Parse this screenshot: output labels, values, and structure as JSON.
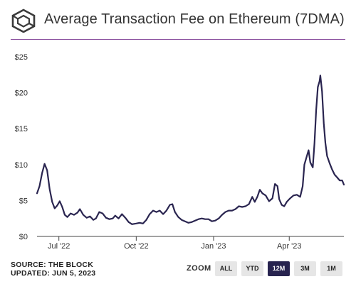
{
  "header": {
    "title": "Average Transaction Fee on Ethereum (7DMA)",
    "logo_icon": "cube-icon",
    "rule_color": "#8a4f9e"
  },
  "footer": {
    "source": "SOURCE: THE BLOCK",
    "updated": "UPDATED: JUN 5, 2023"
  },
  "zoom": {
    "label": "ZOOM",
    "buttons": [
      "ALL",
      "YTD",
      "12M",
      "3M",
      "1M"
    ],
    "active": "12M"
  },
  "colors": {
    "line": "#2a2550",
    "active_button": "#27234f",
    "button": "#e6e6e6",
    "axis": "#333333"
  },
  "chart_data": {
    "type": "line",
    "title": "Average Transaction Fee on Ethereum (7DMA)",
    "xlabel": "",
    "ylabel": "",
    "ylim": [
      0,
      25
    ],
    "yticks": [
      "$0",
      "$5",
      "$10",
      "$15",
      "$20",
      "$25"
    ],
    "xticks": [
      {
        "label": "Jul '22",
        "date": "2022-07-01"
      },
      {
        "label": "Oct '22",
        "date": "2022-10-01"
      },
      {
        "label": "Jan '23",
        "date": "2023-01-01"
      },
      {
        "label": "Apr '23",
        "date": "2023-04-01"
      }
    ],
    "xrange": [
      "2022-06-05",
      "2023-06-05"
    ],
    "grid": false,
    "legend": "none",
    "series": [
      {
        "name": "",
        "points": [
          [
            "2022-06-05",
            6.0
          ],
          [
            "2022-06-08",
            7.0
          ],
          [
            "2022-06-11",
            8.8
          ],
          [
            "2022-06-14",
            10.1
          ],
          [
            "2022-06-17",
            9.2
          ],
          [
            "2022-06-20",
            6.6
          ],
          [
            "2022-06-23",
            4.8
          ],
          [
            "2022-06-26",
            3.9
          ],
          [
            "2022-06-29",
            4.3
          ],
          [
            "2022-07-02",
            4.9
          ],
          [
            "2022-07-05",
            4.1
          ],
          [
            "2022-07-08",
            3.0
          ],
          [
            "2022-07-11",
            2.7
          ],
          [
            "2022-07-15",
            3.2
          ],
          [
            "2022-07-19",
            3.0
          ],
          [
            "2022-07-23",
            3.3
          ],
          [
            "2022-07-26",
            3.8
          ],
          [
            "2022-07-30",
            3.0
          ],
          [
            "2022-08-03",
            2.6
          ],
          [
            "2022-08-07",
            2.8
          ],
          [
            "2022-08-11",
            2.3
          ],
          [
            "2022-08-14",
            2.5
          ],
          [
            "2022-08-18",
            3.4
          ],
          [
            "2022-08-22",
            3.2
          ],
          [
            "2022-08-26",
            2.6
          ],
          [
            "2022-08-30",
            2.4
          ],
          [
            "2022-09-03",
            2.5
          ],
          [
            "2022-09-06",
            2.9
          ],
          [
            "2022-09-10",
            2.5
          ],
          [
            "2022-09-14",
            3.1
          ],
          [
            "2022-09-18",
            2.6
          ],
          [
            "2022-09-22",
            2.0
          ],
          [
            "2022-09-26",
            1.7
          ],
          [
            "2022-10-01",
            1.8
          ],
          [
            "2022-10-05",
            1.9
          ],
          [
            "2022-10-09",
            1.8
          ],
          [
            "2022-10-13",
            2.3
          ],
          [
            "2022-10-17",
            3.1
          ],
          [
            "2022-10-21",
            3.6
          ],
          [
            "2022-10-25",
            3.4
          ],
          [
            "2022-10-29",
            3.6
          ],
          [
            "2022-11-02",
            3.1
          ],
          [
            "2022-11-06",
            3.6
          ],
          [
            "2022-11-10",
            4.4
          ],
          [
            "2022-11-13",
            4.5
          ],
          [
            "2022-11-16",
            3.4
          ],
          [
            "2022-11-20",
            2.7
          ],
          [
            "2022-11-24",
            2.3
          ],
          [
            "2022-11-28",
            2.1
          ],
          [
            "2022-12-02",
            1.9
          ],
          [
            "2022-12-06",
            2.0
          ],
          [
            "2022-12-10",
            2.2
          ],
          [
            "2022-12-14",
            2.4
          ],
          [
            "2022-12-18",
            2.5
          ],
          [
            "2022-12-22",
            2.4
          ],
          [
            "2022-12-26",
            2.4
          ],
          [
            "2022-12-30",
            2.1
          ],
          [
            "2023-01-03",
            2.2
          ],
          [
            "2023-01-07",
            2.5
          ],
          [
            "2023-01-11",
            3.0
          ],
          [
            "2023-01-15",
            3.4
          ],
          [
            "2023-01-19",
            3.6
          ],
          [
            "2023-01-23",
            3.6
          ],
          [
            "2023-01-27",
            3.8
          ],
          [
            "2023-01-31",
            4.2
          ],
          [
            "2023-02-04",
            4.1
          ],
          [
            "2023-02-08",
            4.2
          ],
          [
            "2023-02-12",
            4.5
          ],
          [
            "2023-02-16",
            5.5
          ],
          [
            "2023-02-19",
            4.8
          ],
          [
            "2023-02-22",
            5.5
          ],
          [
            "2023-02-25",
            6.5
          ],
          [
            "2023-02-28",
            6.0
          ],
          [
            "2023-03-04",
            5.7
          ],
          [
            "2023-03-08",
            4.9
          ],
          [
            "2023-03-12",
            5.3
          ],
          [
            "2023-03-15",
            7.3
          ],
          [
            "2023-03-18",
            7.0
          ],
          [
            "2023-03-20",
            5.2
          ],
          [
            "2023-03-23",
            4.4
          ],
          [
            "2023-03-26",
            4.2
          ],
          [
            "2023-03-29",
            4.8
          ],
          [
            "2023-04-02",
            5.3
          ],
          [
            "2023-04-06",
            5.7
          ],
          [
            "2023-04-10",
            5.8
          ],
          [
            "2023-04-14",
            5.5
          ],
          [
            "2023-04-17",
            7.0
          ],
          [
            "2023-04-19",
            10.0
          ],
          [
            "2023-04-22",
            11.2
          ],
          [
            "2023-04-24",
            12.0
          ],
          [
            "2023-04-26",
            10.3
          ],
          [
            "2023-04-29",
            9.6
          ],
          [
            "2023-05-01",
            13.0
          ],
          [
            "2023-05-03",
            17.5
          ],
          [
            "2023-05-05",
            20.8
          ],
          [
            "2023-05-07",
            21.6
          ],
          [
            "2023-05-08",
            22.4
          ],
          [
            "2023-05-10",
            20.2
          ],
          [
            "2023-05-12",
            15.8
          ],
          [
            "2023-05-14",
            13.0
          ],
          [
            "2023-05-16",
            11.2
          ],
          [
            "2023-05-19",
            10.2
          ],
          [
            "2023-05-22",
            9.3
          ],
          [
            "2023-05-25",
            8.6
          ],
          [
            "2023-05-28",
            8.2
          ],
          [
            "2023-05-31",
            7.8
          ],
          [
            "2023-06-03",
            7.8
          ],
          [
            "2023-06-05",
            7.2
          ]
        ]
      }
    ]
  }
}
